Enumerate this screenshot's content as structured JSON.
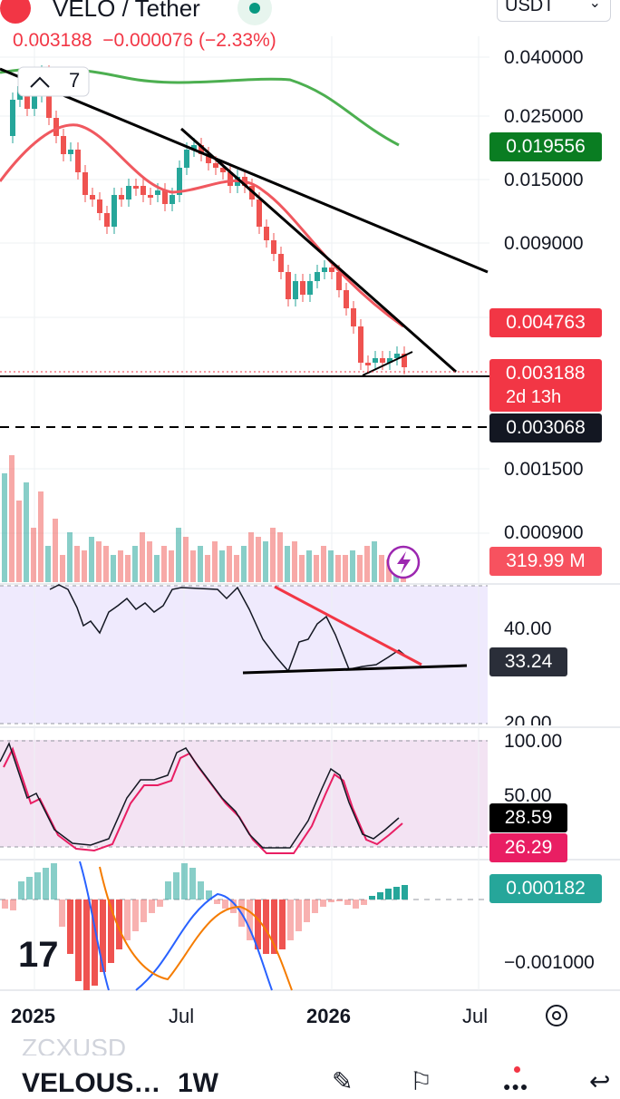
{
  "header": {
    "pair": "VELO / Tether",
    "price_line": "0.003188  −0.000076 (−2.33%)",
    "currency_select": "USDT",
    "indicator_count": "7"
  },
  "price_axis": {
    "ticks": [
      "0.040000",
      "0.025000",
      "0.015000",
      "0.009000",
      "0.001500",
      "0.000900"
    ],
    "tags": {
      "ma_green": "0.019556",
      "ma_red": "0.004763",
      "last_price": "0.003188",
      "countdown": "2d 13h",
      "support": "0.003068",
      "volume": "319.99 M"
    }
  },
  "rsi": {
    "ticks": [
      "40.00",
      "20.00"
    ],
    "value": "33.24"
  },
  "stoch": {
    "ticks": [
      "100.00",
      "50.00"
    ],
    "k": "28.59",
    "d": "26.29"
  },
  "macd": {
    "value": "0.000182",
    "tick": "−0.001000"
  },
  "time_axis": [
    "2025",
    "Jul",
    "2026",
    "Jul"
  ],
  "footer": {
    "symbol_faded": "ZCXUSD",
    "symbol": "VELOUS…",
    "interval": "1W"
  },
  "colors": {
    "up": "#26a69a",
    "down": "#ef5350",
    "ma_green": "#4caf50",
    "ma_red": "#f23645",
    "trend": "#000000",
    "rsi_bg": "#efeafd",
    "stoch_bg": "#f3e3f3"
  },
  "chart_data": [
    {
      "type": "line",
      "title": "VELO / Tether",
      "x": [
        "2025",
        "Jul",
        "2026",
        "Jul"
      ],
      "yscale": "log",
      "ylim": [
        0.0008,
        0.05
      ],
      "series": [
        {
          "name": "VELO / Tether",
          "last": 0.003188
        },
        {
          "values_note_free": true,
          "last": 0.019556
        },
        {
          "last": 0.004763
        }
      ],
      "levels": [
        0.003068
      ]
    },
    {
      "type": "line",
      "ticks": [
        40,
        20
      ],
      "series": [
        {
          "last": 33.24
        }
      ]
    },
    {
      "type": "line",
      "ticks": [
        100,
        50
      ],
      "series": [
        {
          "last": 28.59
        },
        {
          "last": 26.29
        }
      ]
    },
    {
      "type": "bar",
      "ticks": [
        -0.001
      ],
      "series": [
        {
          "last": 0.000182
        }
      ]
    }
  ]
}
